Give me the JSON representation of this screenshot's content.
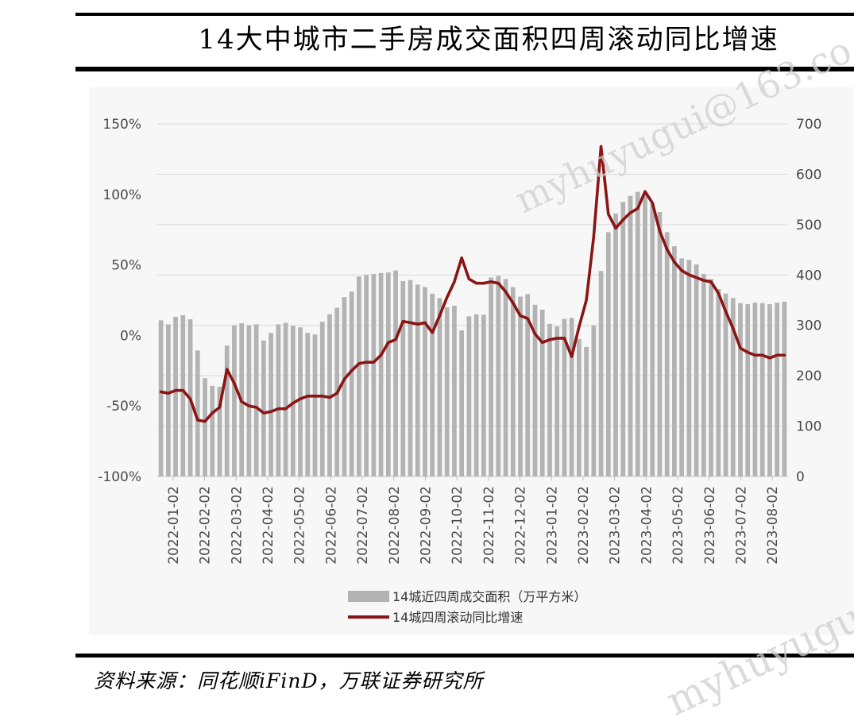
{
  "title": "14大中城市二手房成交面积四周滚动同比增速",
  "source": "资料来源：同花顺iFinD，万联证券研究所",
  "watermarks": [
    "myhuyugui@163.co",
    "myhuyugui"
  ],
  "colors": {
    "bars": "#b3b3b3",
    "line": "#8b1414",
    "grid": "#d9d9d9"
  },
  "chart_data": {
    "type": "bar+line",
    "x_tick_labels": [
      "2022-01-02",
      "2022-02-02",
      "2022-03-02",
      "2022-04-02",
      "2022-05-02",
      "2022-06-02",
      "2022-07-02",
      "2022-08-02",
      "2022-09-02",
      "2022-10-02",
      "2022-11-02",
      "2022-12-02",
      "2023-01-02",
      "2023-02-02",
      "2023-03-02",
      "2023-04-02",
      "2023-05-02",
      "2023-06-02",
      "2023-07-02",
      "2023-08-02"
    ],
    "y_left": {
      "range": [
        -1.0,
        1.5
      ],
      "ticks": [
        "150%",
        "100%",
        "50%",
        "0%",
        "-50%",
        "-100%"
      ]
    },
    "y_right": {
      "range": [
        0,
        700
      ],
      "ticks": [
        "700",
        "600",
        "500",
        "400",
        "300",
        "200",
        "100",
        "0"
      ]
    },
    "grid": "horizontal",
    "legend_position": "bottom",
    "series": [
      {
        "name": "14城近四周成交面积（万平方米）",
        "type": "bar",
        "axis": "right",
        "values": [
          310,
          302,
          317,
          320,
          312,
          250,
          195,
          180,
          178,
          260,
          300,
          304,
          300,
          302,
          270,
          285,
          302,
          305,
          299,
          296,
          285,
          282,
          307,
          322,
          335,
          356,
          367,
          397,
          400,
          402,
          404,
          405,
          409,
          388,
          390,
          381,
          376,
          363,
          354,
          336,
          339,
          290,
          318,
          322,
          321,
          395,
          398,
          392,
          376,
          357,
          362,
          341,
          331,
          303,
          298,
          313,
          315,
          273,
          257,
          300,
          408,
          485,
          522,
          545,
          557,
          565,
          560,
          542,
          525,
          485,
          457,
          433,
          430,
          421,
          402,
          392,
          372,
          363,
          354,
          344,
          342,
          345,
          344,
          342,
          345,
          347
        ]
      },
      {
        "name": "14城四周滚动同比增速",
        "type": "line",
        "axis": "left",
        "values": [
          -0.4,
          -0.41,
          -0.39,
          -0.39,
          -0.45,
          -0.6,
          -0.61,
          -0.55,
          -0.51,
          -0.24,
          -0.34,
          -0.47,
          -0.5,
          -0.51,
          -0.55,
          -0.54,
          -0.52,
          -0.52,
          -0.48,
          -0.45,
          -0.43,
          -0.43,
          -0.43,
          -0.44,
          -0.41,
          -0.31,
          -0.25,
          -0.2,
          -0.19,
          -0.19,
          -0.14,
          -0.05,
          -0.03,
          0.1,
          0.09,
          0.08,
          0.09,
          0.02,
          0.14,
          0.27,
          0.38,
          0.55,
          0.4,
          0.37,
          0.37,
          0.38,
          0.37,
          0.31,
          0.23,
          0.14,
          0.12,
          0.01,
          -0.05,
          -0.03,
          -0.02,
          -0.02,
          -0.15,
          0.06,
          0.25,
          0.7,
          1.34,
          0.86,
          0.76,
          0.82,
          0.87,
          0.9,
          1.02,
          0.94,
          0.74,
          0.61,
          0.52,
          0.46,
          0.43,
          0.41,
          0.39,
          0.38,
          0.3,
          0.17,
          0.05,
          -0.09,
          -0.12,
          -0.14,
          -0.14,
          -0.16,
          -0.14,
          -0.14
        ]
      }
    ]
  }
}
